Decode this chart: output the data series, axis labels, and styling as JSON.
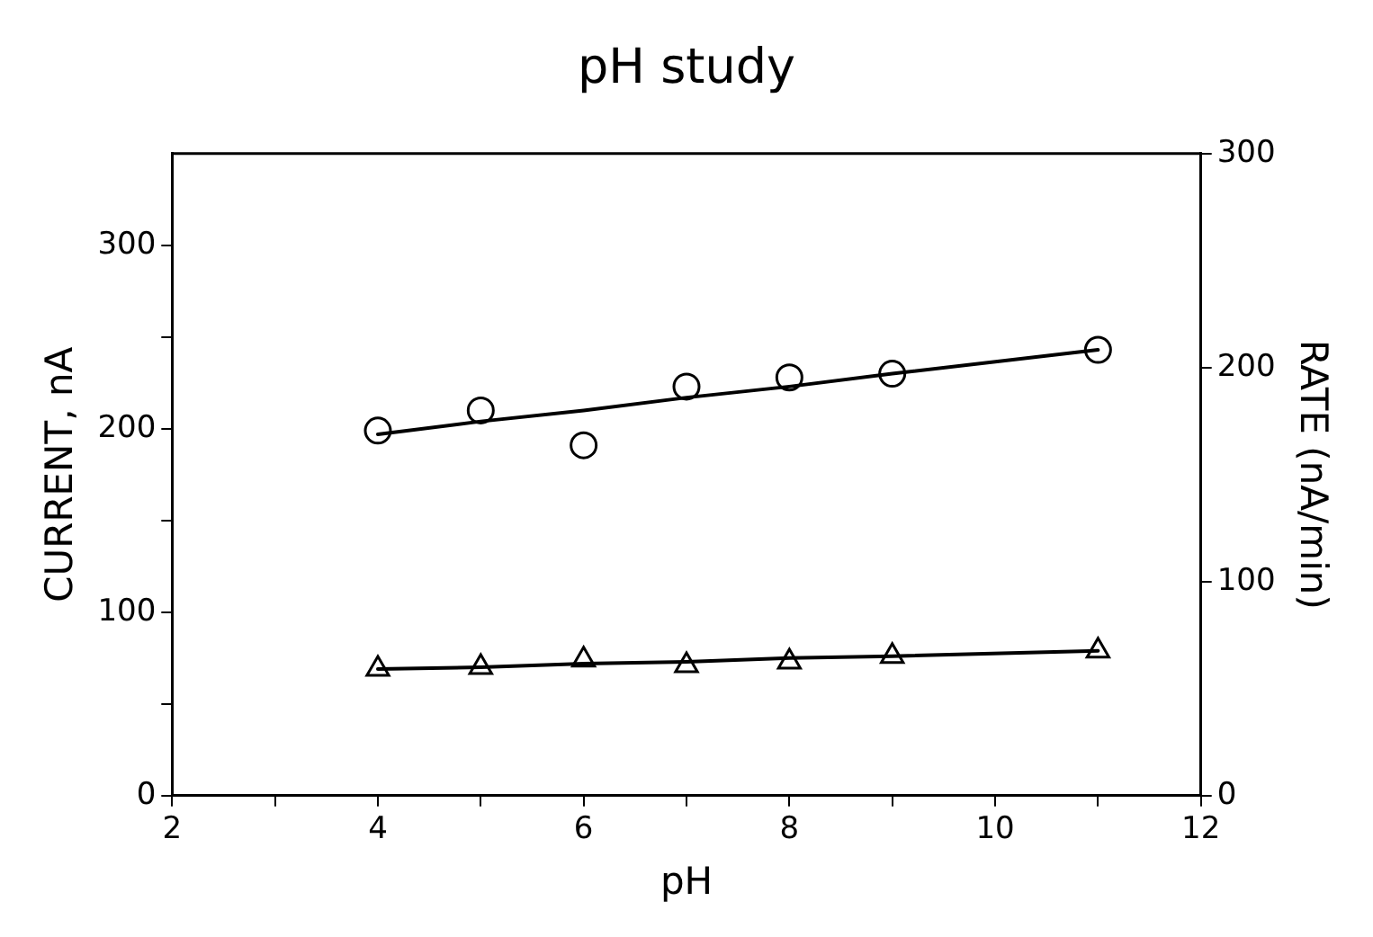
{
  "chart_data": {
    "type": "scatter",
    "title": "pH study",
    "xlabel": "pH",
    "ylabel": "CURRENT, nA",
    "y2label": "RATE (nA/min)",
    "x": [
      4,
      5,
      6,
      7,
      8,
      9,
      11
    ],
    "series": [
      {
        "color": "#000000",
        "marker": "circle",
        "values": [
          199,
          210,
          191,
          223,
          228,
          230,
          243
        ]
      },
      {
        "color": "#000000",
        "marker": "triangle",
        "values": [
          69,
          70,
          74,
          71,
          73,
          76,
          79
        ]
      },
      {
        "type": "line",
        "color": "#000000",
        "marker": "none",
        "values": [
          197,
          204,
          210,
          217,
          223,
          230,
          243
        ]
      },
      {
        "type": "line",
        "color": "#000000",
        "marker": "none",
        "values": [
          69,
          70,
          72,
          73,
          75,
          76,
          79
        ]
      }
    ],
    "xlim": [
      2,
      12
    ],
    "xticks": [
      2,
      {
        "value": 3,
        "label": null
      },
      4,
      {
        "value": 5,
        "label": null
      },
      6,
      {
        "value": 7,
        "label": null
      },
      8,
      {
        "value": 9,
        "label": null
      },
      10,
      {
        "value": 11,
        "label": null
      },
      12
    ],
    "ylim": [
      0,
      350
    ],
    "yticks": [
      0,
      {
        "value": 50,
        "label": null
      },
      100,
      {
        "value": 150,
        "label": null
      },
      200,
      {
        "value": 250,
        "label": null
      },
      300
    ],
    "y2lim": [
      0,
      300
    ],
    "y2ticks": [
      0,
      100,
      200,
      300
    ],
    "grid": false,
    "legend": false
  }
}
